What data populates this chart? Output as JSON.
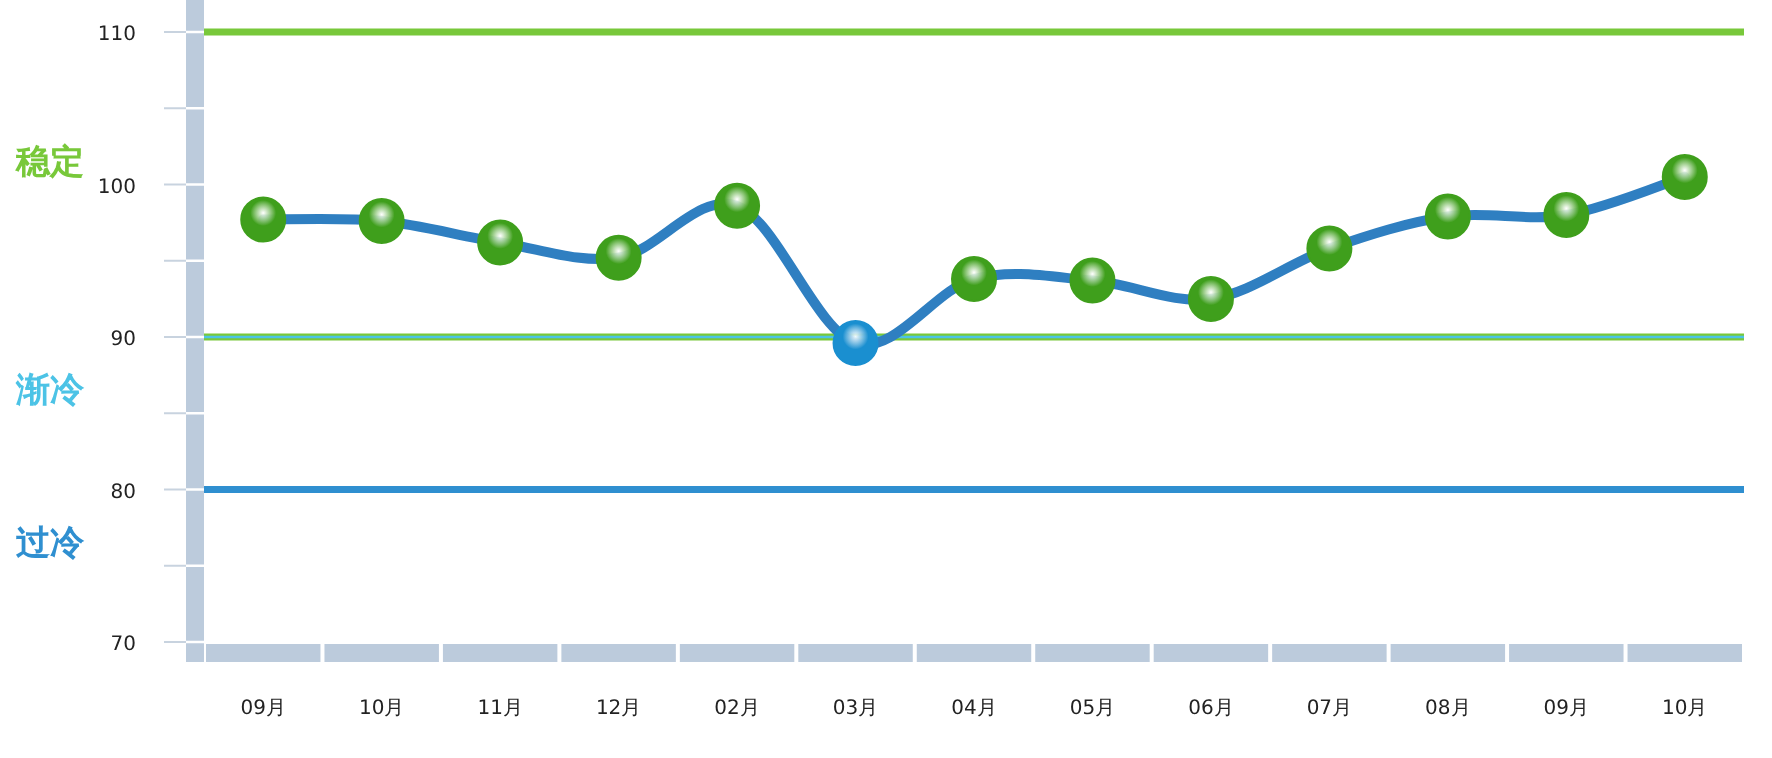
{
  "chart_data": {
    "type": "line",
    "categories": [
      "09月",
      "10月",
      "11月",
      "12月",
      "02月",
      "03月",
      "04月",
      "05月",
      "06月",
      "07月",
      "08月",
      "09月",
      "10月"
    ],
    "series": [
      {
        "color": "#2f7fc1",
        "values": [
          97.7,
          97.6,
          96.2,
          95.2,
          98.6,
          89.6,
          93.8,
          93.7,
          92.5,
          95.8,
          97.9,
          98.0,
          100.5
        ],
        "colors": [
          "#3f9f1c",
          "#3f9f1c",
          "#3f9f1c",
          "#3f9f1c",
          "#3f9f1c",
          "#1a8fd0",
          "#3f9f1c",
          "#3f9f1c",
          "#3f9f1c",
          "#3f9f1c",
          "#3f9f1c",
          "#3f9f1c",
          "#3f9f1c"
        ]
      }
    ],
    "ylim": [
      70,
      110
    ],
    "yticks": [
      70,
      {
        "value": 75,
        "label": null
      },
      80,
      {
        "value": 85,
        "label": null
      },
      90,
      {
        "value": 95,
        "label": null
      },
      100,
      {
        "value": 105,
        "label": null
      },
      110
    ],
    "ref_lines": [
      {
        "axis": "y",
        "value": 110,
        "color": "#78c83a"
      },
      {
        "axis": "y",
        "value": 90,
        "color": "#78c83a"
      },
      {
        "axis": "y",
        "value": 90,
        "color": "#4cc3e6"
      },
      {
        "axis": "y",
        "value": 80,
        "color": "#2f8fd0"
      }
    ],
    "annotations": [
      "稳定",
      "渐冷",
      "过冷"
    ],
    "marker": "circle",
    "grid": false
  }
}
